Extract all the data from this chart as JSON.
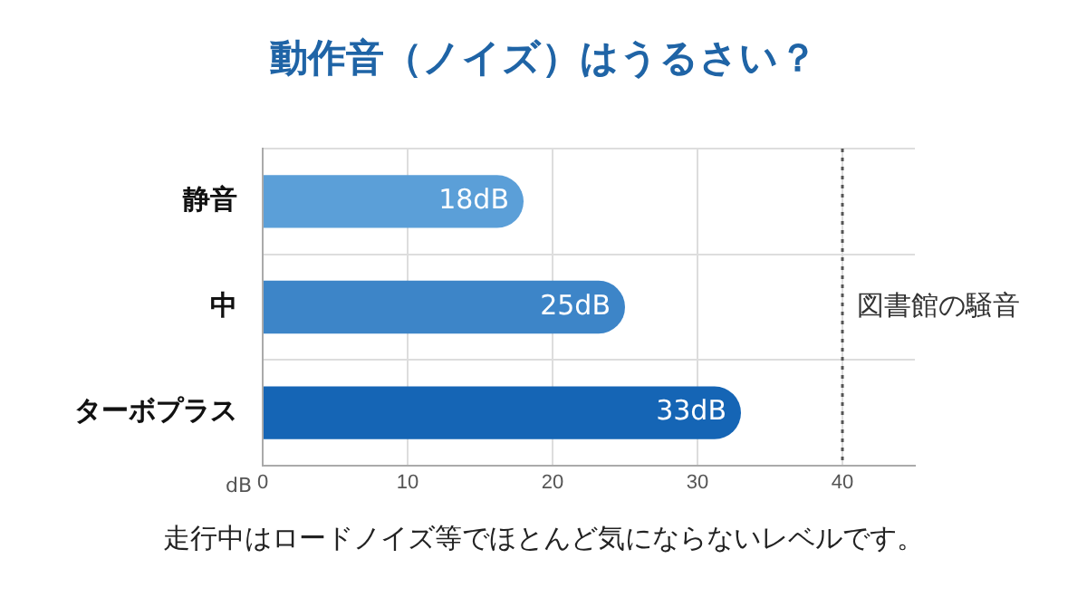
{
  "chart_data": {
    "type": "bar",
    "orientation": "horizontal",
    "title": "動作音（ノイズ）はうるさい？",
    "xlabel": "dB",
    "categories": [
      "静音",
      "中",
      "ターボプラス"
    ],
    "values": [
      18,
      25,
      33
    ],
    "colors": [
      "#5b9fd8",
      "#3d85c8",
      "#1565b5"
    ],
    "value_labels": [
      "18dB",
      "25dB",
      "33dB"
    ],
    "xlim": [
      0,
      45
    ],
    "xticks": [
      0,
      10,
      20,
      30,
      40
    ],
    "grid": true,
    "legend": false,
    "ref_lines": [
      {
        "axis": "x",
        "value": 40,
        "label": "図書館の騒音",
        "color": "#555555",
        "line_style": "dotted"
      }
    ],
    "annotations": [
      "走行中はロードノイズ等でほとんど気にならないレベルです。"
    ]
  }
}
